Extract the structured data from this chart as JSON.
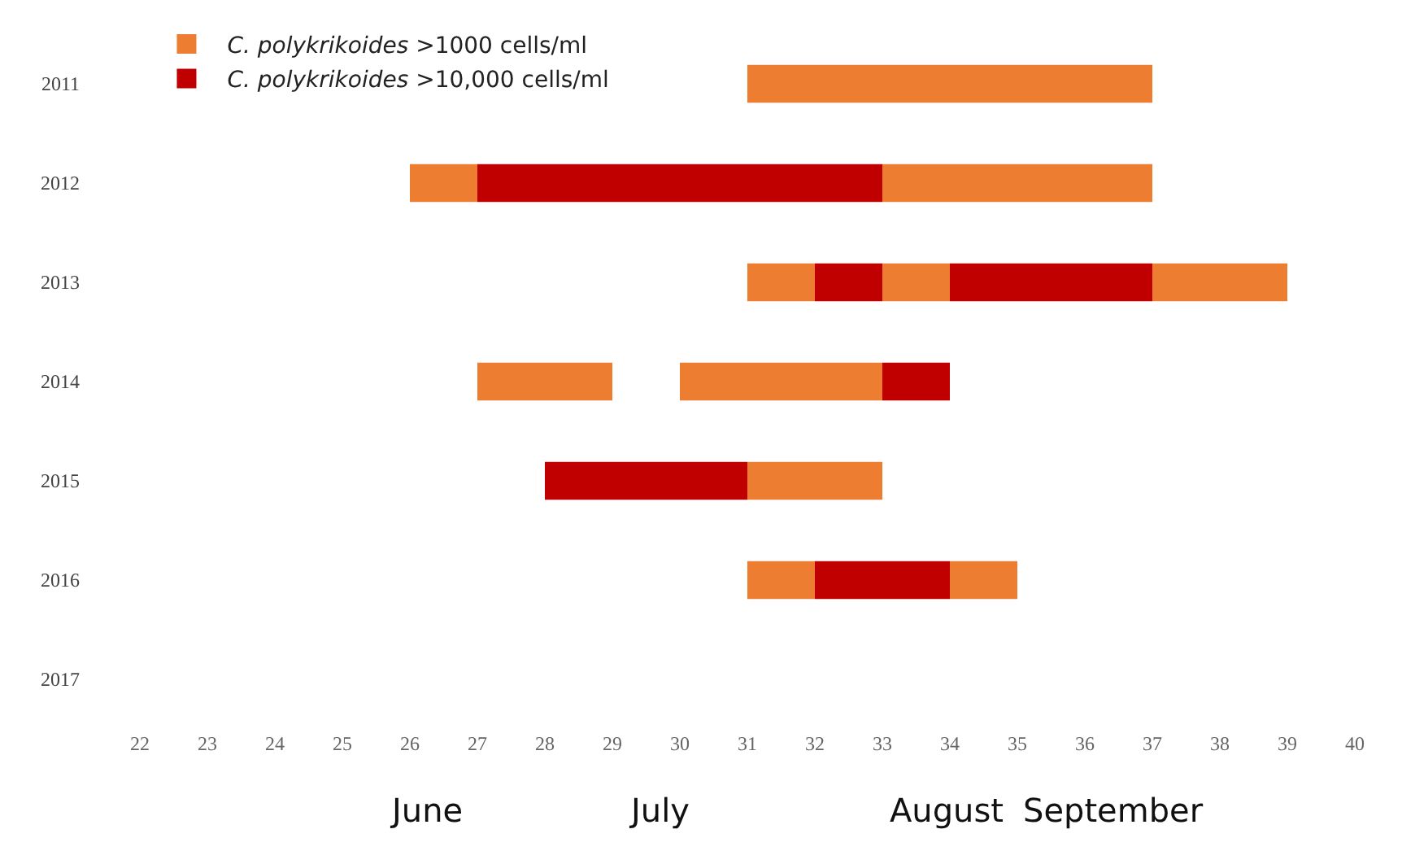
{
  "chart_data": {
    "type": "bar",
    "orientation": "horizontal",
    "categories": [
      "2011",
      "2012",
      "2013",
      "2014",
      "2015",
      "2016",
      "2017"
    ],
    "series": [
      {
        "name": "C. polykrikoides >1000 cells/ml",
        "color": "#ed7d31",
        "base": [
          31,
          26,
          31,
          27,
          null,
          31,
          null
        ],
        "values": [
          6,
          1,
          1,
          2,
          null,
          1,
          null
        ]
      },
      {
        "name": "C. polykrikoides >10,000 cells/ml",
        "color": "#c00000",
        "base": [
          null,
          27,
          32,
          null,
          28,
          32,
          null
        ],
        "values": [
          null,
          6,
          1,
          null,
          3,
          2,
          null
        ]
      },
      {
        "color": "#ed7d31",
        "base": [
          null,
          33,
          33,
          30,
          31,
          34,
          null
        ],
        "values": [
          null,
          4,
          1,
          3,
          2,
          1,
          null
        ]
      },
      {
        "color": "#c00000",
        "base": [
          null,
          null,
          34,
          33,
          null,
          null,
          null
        ],
        "values": [
          null,
          null,
          3,
          1,
          null,
          null,
          null
        ]
      },
      {
        "color": "#ed7d31",
        "base": [
          null,
          null,
          37,
          null,
          null,
          null,
          null
        ],
        "values": [
          null,
          null,
          2,
          null,
          null,
          null,
          null
        ]
      }
    ],
    "xlim": [
      22,
      40
    ],
    "xticks": [
      22,
      23,
      24,
      25,
      26,
      27,
      28,
      29,
      30,
      31,
      32,
      33,
      34,
      35,
      36,
      37,
      38,
      39,
      40
    ],
    "annotations": [
      "June",
      "July",
      "August",
      "September"
    ],
    "grid": false,
    "legend": "top left"
  }
}
